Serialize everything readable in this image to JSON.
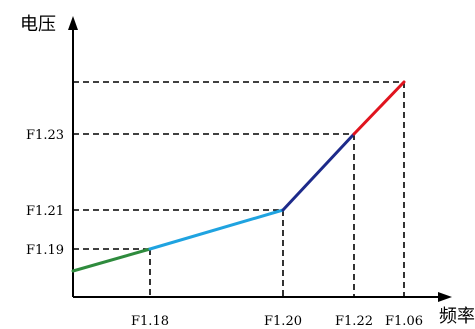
{
  "chart_data": {
    "type": "line",
    "ylabel": "电压",
    "xlabel": "频率",
    "x_ticks": [
      {
        "id": "x-f118",
        "label": "F1.18"
      },
      {
        "id": "x-f120",
        "label": "F1.20"
      },
      {
        "id": "x-f122",
        "label": "F1.22"
      },
      {
        "id": "x-f106",
        "label": "F1.06"
      }
    ],
    "y_ticks": [
      {
        "id": "y-f119",
        "label": "F1.19"
      },
      {
        "id": "y-f121",
        "label": "F1.21"
      },
      {
        "id": "y-f123",
        "label": "F1.23"
      }
    ],
    "segments": [
      {
        "from": [
          "start",
          "start"
        ],
        "to": [
          "F1.18",
          "F1.19"
        ],
        "color": "#2e8b3d"
      },
      {
        "from": [
          "F1.18",
          "F1.19"
        ],
        "to": [
          "F1.20",
          "F1.21"
        ],
        "color": "#1fa3e0"
      },
      {
        "from": [
          "F1.20",
          "F1.21"
        ],
        "to": [
          "F1.22",
          "F1.23"
        ],
        "color": "#1d2a8a"
      },
      {
        "from": [
          "F1.22",
          "F1.23"
        ],
        "to": [
          "F1.06",
          "max"
        ],
        "color": "#e0141e"
      }
    ],
    "guides": "dashed",
    "grid": false
  }
}
